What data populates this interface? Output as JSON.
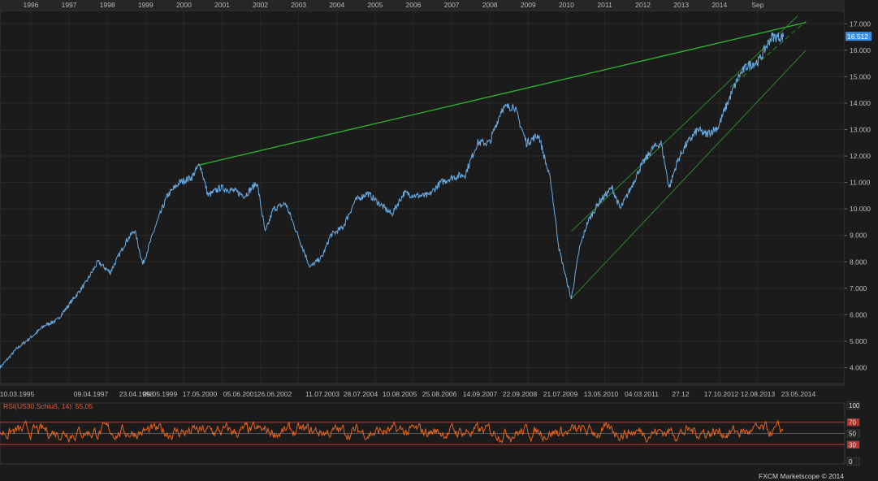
{
  "chart_data": [
    {
      "type": "line",
      "title": "",
      "instrument": "US30",
      "xlabel": "",
      "ylabel": "",
      "ylim": [
        3.4,
        17.5
      ],
      "y_ticks": [
        "4.000",
        "5.000",
        "6.000",
        "7.000",
        "8.000",
        "9.000",
        "10.000",
        "11.000",
        "12.000",
        "13.000",
        "14.000",
        "15.000",
        "16.000",
        "17.000"
      ],
      "y_tick_values": [
        4,
        5,
        6,
        7,
        8,
        9,
        10,
        11,
        12,
        13,
        14,
        15,
        16,
        17
      ],
      "last_price_label": "16.512",
      "last_price": 16.512,
      "top_axis_labels": [
        "1996",
        "1997",
        "1998",
        "1999",
        "2000",
        "2001",
        "2002",
        "2003",
        "2004",
        "2005",
        "2006",
        "2007",
        "2008",
        "2009",
        "2010",
        "2011",
        "2012",
        "2013",
        "2014",
        "Sep"
      ],
      "bottom_axis_labels": [
        "10.03.1995",
        "09.04.1997",
        "23.04.1998",
        "05.05.1999",
        "17.05.2000",
        "05.06.2001",
        "26.06.2002",
        "11.07.2003",
        "28.07.2004",
        "10.08.2005",
        "25.08.2006",
        "14.09.2007",
        "22.09.2008",
        "21.07.2009",
        "13.05.2010",
        "04.03.2011",
        "27.12",
        "17.10.2012",
        "12.08.2013",
        "23.05.2014"
      ],
      "series": [
        {
          "color": "#6aaee8",
          "x": [
            1995.2,
            1995.6,
            1996.0,
            1996.3,
            1996.6,
            1997.0,
            1997.3,
            1997.6,
            1997.9,
            1998.3,
            1998.5,
            1998.7,
            1999.0,
            1999.3,
            1999.6,
            1999.9,
            2000.1,
            2000.3,
            2000.6,
            2000.9,
            2001.2,
            2001.5,
            2001.7,
            2001.9,
            2002.2,
            2002.5,
            2002.8,
            2003.1,
            2003.3,
            2003.6,
            2003.9,
            2004.2,
            2004.5,
            2004.8,
            2005.1,
            2005.4,
            2005.7,
            2006.0,
            2006.3,
            2006.6,
            2006.9,
            2007.2,
            2007.5,
            2007.8,
            2008.1,
            2008.4,
            2008.7,
            2008.9,
            2009.1,
            2009.2,
            2009.4,
            2009.6,
            2009.9,
            2010.2,
            2010.4,
            2010.6,
            2010.9,
            2011.2,
            2011.4,
            2011.6,
            2011.8,
            2012.0,
            2012.3,
            2012.5,
            2012.8,
            2013.0,
            2013.3,
            2013.5,
            2013.8,
            2014.1,
            2014.4
          ],
          "y": [
            4.0,
            4.7,
            5.2,
            5.6,
            5.8,
            6.6,
            7.2,
            8.0,
            7.6,
            8.8,
            9.2,
            7.9,
            9.3,
            10.5,
            11.0,
            11.2,
            11.7,
            10.5,
            10.8,
            10.7,
            10.5,
            11.0,
            9.1,
            10.0,
            10.2,
            9.0,
            7.8,
            8.2,
            9.0,
            9.3,
            10.3,
            10.6,
            10.2,
            9.8,
            10.6,
            10.5,
            10.5,
            11.0,
            11.2,
            11.3,
            12.5,
            12.5,
            13.8,
            13.9,
            12.5,
            12.8,
            11.0,
            8.5,
            7.2,
            6.6,
            8.5,
            9.5,
            10.3,
            10.8,
            10.0,
            10.6,
            11.6,
            12.3,
            12.5,
            10.8,
            11.8,
            12.4,
            13.0,
            12.8,
            13.1,
            13.9,
            15.0,
            15.4,
            15.6,
            16.5,
            16.51
          ]
        }
      ],
      "trendlines": [
        {
          "color": "#2fb82f",
          "from": [
            2000.05,
            11.65
          ],
          "to": [
            2014.95,
            17.05
          ]
        },
        {
          "color": "#2a8a2a",
          "from": [
            2009.2,
            6.6
          ],
          "to": [
            2014.95,
            16.0
          ]
        },
        {
          "color": "#2a8a2a",
          "from": [
            2009.2,
            9.15
          ],
          "to": [
            2014.75,
            17.3
          ]
        }
      ],
      "grid": true
    },
    {
      "type": "line",
      "title": "RSI(US30.Schluß, 14): 55,05",
      "ylim": [
        0,
        100
      ],
      "y_ticks": [
        "100",
        "70",
        "50",
        "30",
        "0"
      ],
      "y_tick_values": [
        100,
        70,
        50,
        30,
        0
      ],
      "reference_lines": [
        70,
        50,
        30
      ],
      "series": [
        {
          "color": "#e8641e",
          "x_range": [
            1995.2,
            2014.4
          ],
          "rsi_mean": 53,
          "last_value": 55.05
        }
      ]
    }
  ],
  "footer": {
    "credit": "FXCM Marketscope © 2014"
  },
  "colors": {
    "background": "#1b1b1b",
    "grid": "#2b2b2b",
    "price_line": "#6aaee8",
    "trend_main": "#2fb82f",
    "trend_channel": "#2a8a2a",
    "rsi_line": "#e8641e",
    "rsi_band": "#d0302a",
    "price_marker_bg": "#3a8fe0",
    "year_marker": "#d8b13c"
  }
}
